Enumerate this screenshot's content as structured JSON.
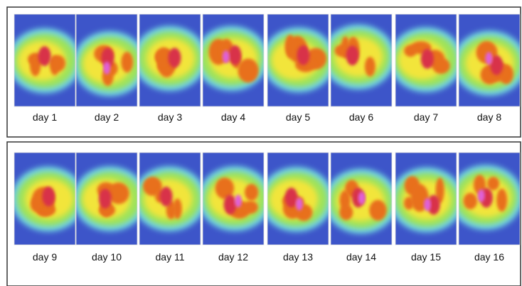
{
  "panels": [
    {
      "labels": [
        "day 1",
        "day 2",
        "day 3",
        "day 4",
        "day 5",
        "day 6",
        "day 7",
        "day 8"
      ]
    },
    {
      "labels": [
        "day 9",
        "day 10",
        "day 11",
        "day 12",
        "day 13",
        "day 14",
        "day 15",
        "day 16"
      ]
    }
  ]
}
